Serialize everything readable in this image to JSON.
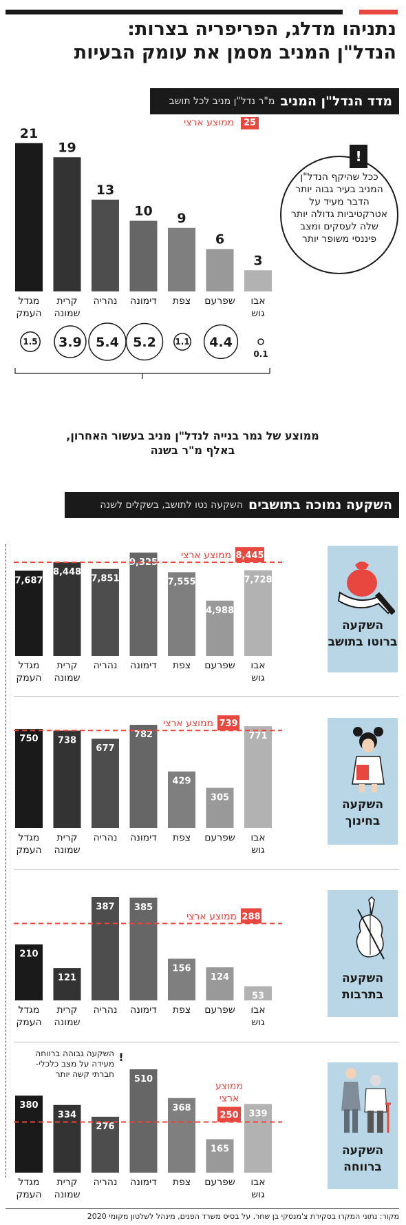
{
  "headline": {
    "line1": "נתניהו מדלג, הפריפריה בצרות:",
    "line2": "הנדל\"ן המניב מסמן את עומק הבעיות"
  },
  "section1": {
    "title": "מדד הנדל\"ן המניב",
    "subtitle": "מ\"ר נדל\"ן מניב לכל תושב",
    "note": "ככל שהיקף הנדל\"ן המניב בעיר גבוה יותר הדבר מעיד על אטרקטיביות גדולה יותר שלה לעסקים ומצב פיננסי משופר יותר",
    "bubble_caption_line1": "ממוצע של גמר בנייה לנדל\"ן מניב בעשור האחרון,",
    "bubble_caption_line2": "באלף מ\"ר בשנה",
    "exclamation": "!"
  },
  "section2": {
    "title": "השקעה נמוכה בתושבים",
    "subtitle": "השקעה נטו לתושב, בשקלים לשנה"
  },
  "panels": {
    "p1_label": "השקעה ברוטו בתושב",
    "p2_label": "השקעה בחינוך",
    "p3_label": "השקעה בתרבות",
    "p4_label": "השקעה ברווחה",
    "p4_warning": "השקעה גבוהה ברווחה מעידה על מצב כלכלי- חברתי קשה יותר"
  },
  "avg_label": "ממוצע ארצי",
  "avg_label_p4_line1": "ממוצע",
  "avg_label_p4_line2": "ארצי",
  "source": "מקור: נתוני המקרו בסקירת צ'מנסקי בן שחר, על בסיס משרד הפנים, מינהל לשלטון מקומי 2020",
  "colors": {
    "accent_red": "#e8473f",
    "city_colors": [
      "#1a1a1a",
      "#333333",
      "#4d4d4d",
      "#666666",
      "#7f7f7f",
      "#999999",
      "#b2b2b2"
    ],
    "side_box": "#b9d6e6"
  },
  "chart_data": [
    {
      "type": "bar",
      "title": "מדד הנדל\"ן המניב",
      "subtitle": "מ\"ר נדל\"ן מניב לכל תושב",
      "categories": [
        "מגדל העמק",
        "קרית שמונה",
        "נהריה",
        "דימונה",
        "צפת",
        "שפרעם",
        "אבו גוש"
      ],
      "values": [
        21,
        19,
        13,
        10,
        9,
        6,
        3
      ],
      "reference_line": {
        "label": "ממוצע ארצי",
        "value": 25
      },
      "ylim": [
        0,
        25
      ],
      "bubbles": {
        "label": "ממוצע של גמר בנייה לנדל\"ן מניב בעשור האחרון, באלף מ\"ר בשנה",
        "values": [
          1.5,
          3.9,
          5.4,
          5.2,
          1.1,
          4.4,
          0.1
        ]
      }
    },
    {
      "type": "bar",
      "title": "השקעה ברוטו בתושב",
      "categories": [
        "מגדל העמק",
        "קרית שמונה",
        "נהריה",
        "דימונה",
        "צפת",
        "שפרעם",
        "אבו גוש"
      ],
      "values": [
        7687,
        8448,
        7851,
        9325,
        7555,
        4988,
        7728
      ],
      "display": [
        "7,687",
        "8,448",
        "7,851",
        "9,325",
        "7,555",
        "4,988",
        "7,728"
      ],
      "reference_line": {
        "label": "ממוצע ארצי",
        "value": 8445,
        "display": "8,445"
      },
      "ylim": [
        0,
        9325
      ]
    },
    {
      "type": "bar",
      "title": "השקעה בחינוך",
      "categories": [
        "מגדל העמק",
        "קרית שמונה",
        "נהריה",
        "דימונה",
        "צפת",
        "שפרעם",
        "אבו גוש"
      ],
      "values": [
        750,
        738,
        677,
        782,
        429,
        305,
        771
      ],
      "reference_line": {
        "label": "ממוצע ארצי",
        "value": 739
      },
      "ylim": [
        0,
        782
      ]
    },
    {
      "type": "bar",
      "title": "השקעה בתרבות",
      "categories": [
        "מגדל העמק",
        "קרית שמונה",
        "נהריה",
        "דימונה",
        "צפת",
        "שפרעם",
        "אבו גוש"
      ],
      "values": [
        210,
        121,
        387,
        385,
        156,
        124,
        53
      ],
      "reference_line": {
        "label": "ממוצע ארצי",
        "value": 288
      },
      "ylim": [
        0,
        387
      ]
    },
    {
      "type": "bar",
      "title": "השקעה ברווחה",
      "categories": [
        "מגדל העמק",
        "קרית שמונה",
        "נהריה",
        "דימונה",
        "צפת",
        "שפרעם",
        "אבו גוש"
      ],
      "values": [
        380,
        334,
        276,
        510,
        368,
        165,
        339
      ],
      "reference_line": {
        "label": "ממוצע ארצי",
        "value": 250
      },
      "ylim": [
        0,
        510
      ]
    }
  ],
  "icons": [
    "money-bag-hand-icon",
    "student-girl-icon",
    "violin-icon",
    "elderly-care-icon"
  ]
}
